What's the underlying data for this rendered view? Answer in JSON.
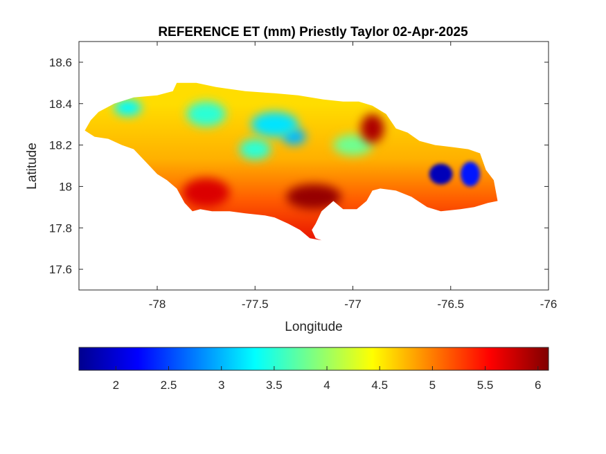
{
  "title": "REFERENCE ET (mm) Priestly Taylor 02-Apr-2025",
  "xlabel": "Longitude",
  "ylabel": "Latitude",
  "chart_data": {
    "type": "heatmap",
    "title": "REFERENCE ET (mm) Priestly Taylor 02-Apr-2025",
    "xlabel": "Longitude",
    "ylabel": "Latitude",
    "xlim": [
      -78.4,
      -76
    ],
    "ylim": [
      17.5,
      18.7
    ],
    "x_ticks": [
      -78,
      -77.5,
      -77,
      -76.5,
      -76
    ],
    "x_tick_labels": [
      "-78",
      "-77.5",
      "-77",
      "-76.5",
      "-76"
    ],
    "y_ticks": [
      17.6,
      17.8,
      18,
      18.2,
      18.4,
      18.6
    ],
    "y_tick_labels": [
      "17.6",
      "17.8",
      "18",
      "18.2",
      "18.4",
      "18.6"
    ],
    "colormap": "jet",
    "clim": [
      1.65,
      6.1
    ],
    "colorbar": {
      "orientation": "horizontal",
      "placement": "bottom",
      "ticks": [
        2,
        2.5,
        3,
        3.5,
        4,
        4.5,
        5,
        5.5,
        6
      ],
      "tick_labels": [
        "2",
        "2.5",
        "3",
        "3.5",
        "4",
        "4.5",
        "5",
        "5.5",
        "6"
      ]
    },
    "region_outline": [
      [
        -78.37,
        18.27
      ],
      [
        -78.34,
        18.32
      ],
      [
        -78.3,
        18.36
      ],
      [
        -78.22,
        18.4
      ],
      [
        -78.12,
        18.43
      ],
      [
        -78.0,
        18.44
      ],
      [
        -77.92,
        18.46
      ],
      [
        -77.9,
        18.5
      ],
      [
        -77.8,
        18.5
      ],
      [
        -77.7,
        18.48
      ],
      [
        -77.55,
        18.46
      ],
      [
        -77.4,
        18.45
      ],
      [
        -77.28,
        18.44
      ],
      [
        -77.15,
        18.42
      ],
      [
        -77.05,
        18.41
      ],
      [
        -76.97,
        18.41
      ],
      [
        -76.9,
        18.39
      ],
      [
        -76.83,
        18.35
      ],
      [
        -76.78,
        18.28
      ],
      [
        -76.72,
        18.26
      ],
      [
        -76.66,
        18.22
      ],
      [
        -76.58,
        18.2
      ],
      [
        -76.49,
        18.19
      ],
      [
        -76.41,
        18.18
      ],
      [
        -76.35,
        18.16
      ],
      [
        -76.32,
        18.08
      ],
      [
        -76.28,
        18.03
      ],
      [
        -76.26,
        17.93
      ],
      [
        -76.31,
        17.92
      ],
      [
        -76.38,
        17.9
      ],
      [
        -76.45,
        17.89
      ],
      [
        -76.55,
        17.88
      ],
      [
        -76.62,
        17.9
      ],
      [
        -76.7,
        17.95
      ],
      [
        -76.78,
        17.98
      ],
      [
        -76.86,
        17.99
      ],
      [
        -76.9,
        17.98
      ],
      [
        -76.93,
        17.93
      ],
      [
        -76.98,
        17.89
      ],
      [
        -77.05,
        17.89
      ],
      [
        -77.1,
        17.93
      ],
      [
        -77.16,
        17.88
      ],
      [
        -77.19,
        17.82
      ],
      [
        -77.21,
        17.79
      ],
      [
        -77.19,
        17.75
      ],
      [
        -77.16,
        17.74
      ],
      [
        -77.22,
        17.75
      ],
      [
        -77.27,
        17.79
      ],
      [
        -77.33,
        17.82
      ],
      [
        -77.4,
        17.85
      ],
      [
        -77.45,
        17.86
      ],
      [
        -77.55,
        17.87
      ],
      [
        -77.63,
        17.88
      ],
      [
        -77.72,
        17.88
      ],
      [
        -77.78,
        17.89
      ],
      [
        -77.82,
        17.88
      ],
      [
        -77.86,
        17.92
      ],
      [
        -77.9,
        17.99
      ],
      [
        -77.95,
        18.03
      ],
      [
        -78.0,
        18.06
      ],
      [
        -78.05,
        18.11
      ],
      [
        -78.12,
        18.18
      ],
      [
        -78.18,
        18.2
      ],
      [
        -78.25,
        18.23
      ],
      [
        -78.32,
        18.24
      ]
    ],
    "value_features": [
      {
        "lon": -76.55,
        "lat": 18.06,
        "value": 1.9,
        "rx": 0.06,
        "ry": 0.05
      },
      {
        "lon": -76.4,
        "lat": 18.06,
        "value": 2.3,
        "rx": 0.05,
        "ry": 0.06
      },
      {
        "lon": -77.3,
        "lat": 18.24,
        "value": 3.0,
        "rx": 0.06,
        "ry": 0.04
      },
      {
        "lon": -77.4,
        "lat": 18.3,
        "value": 3.2,
        "rx": 0.12,
        "ry": 0.06
      },
      {
        "lon": -78.15,
        "lat": 18.38,
        "value": 3.3,
        "rx": 0.07,
        "ry": 0.04
      },
      {
        "lon": -77.75,
        "lat": 18.35,
        "value": 3.5,
        "rx": 0.1,
        "ry": 0.06
      },
      {
        "lon": -77.5,
        "lat": 18.18,
        "value": 3.5,
        "rx": 0.08,
        "ry": 0.05
      },
      {
        "lon": -77.0,
        "lat": 18.2,
        "value": 3.8,
        "rx": 0.1,
        "ry": 0.05
      },
      {
        "lon": -77.2,
        "lat": 17.95,
        "value": 6.0,
        "rx": 0.14,
        "ry": 0.06
      },
      {
        "lon": -76.9,
        "lat": 18.28,
        "value": 5.9,
        "rx": 0.06,
        "ry": 0.07
      },
      {
        "lon": -77.75,
        "lat": 17.97,
        "value": 5.7,
        "rx": 0.12,
        "ry": 0.07
      }
    ]
  }
}
